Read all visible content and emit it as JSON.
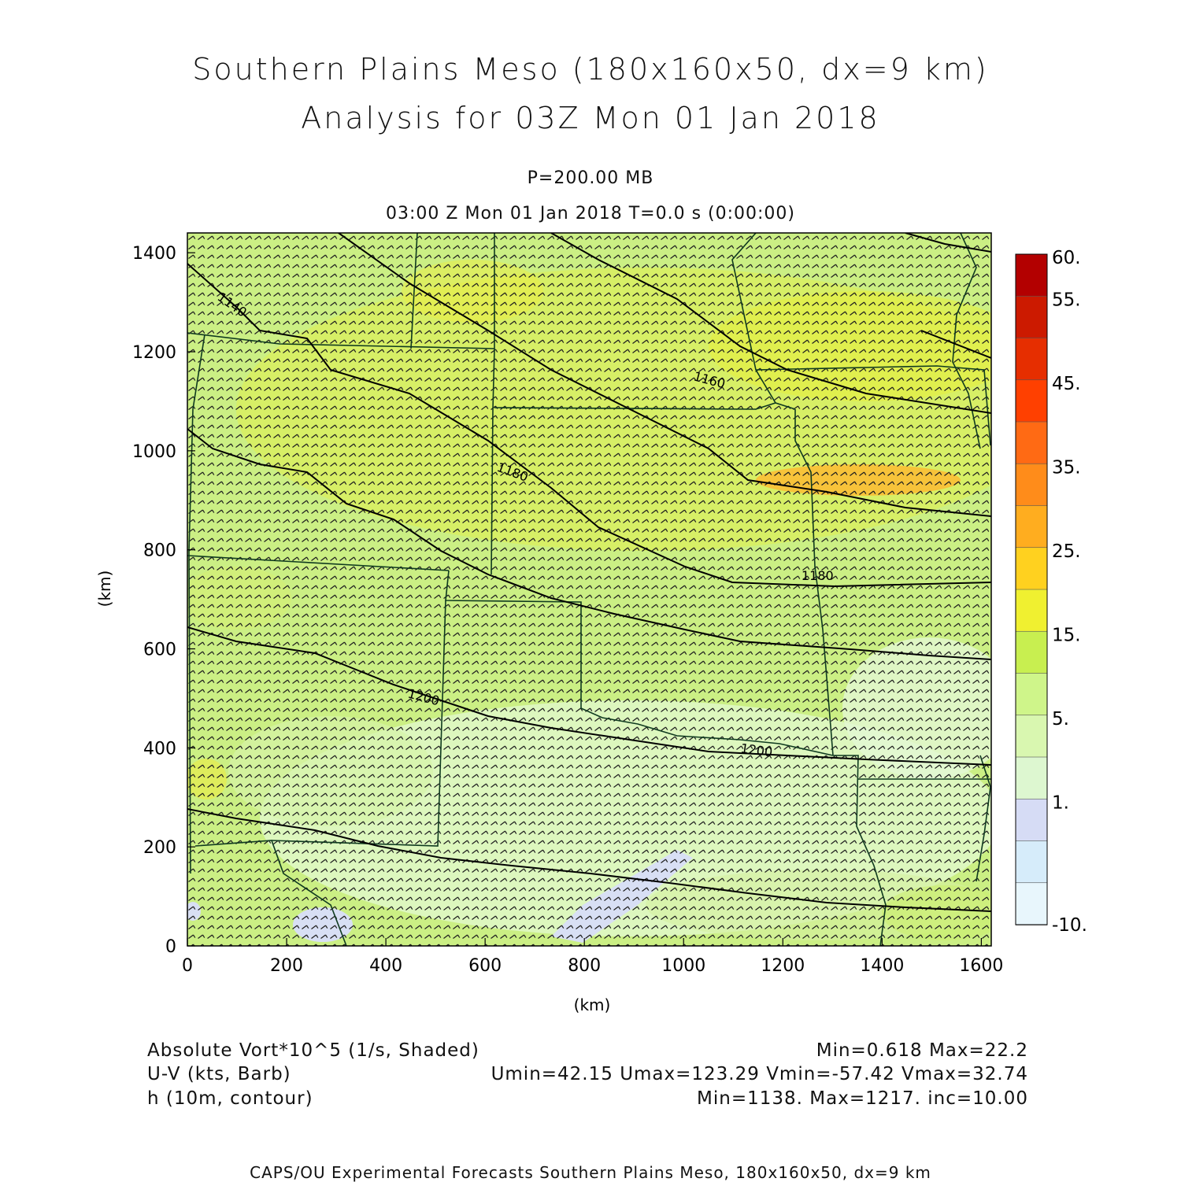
{
  "title": {
    "line1": "Southern Plains Meso (180x160x50, dx=9 km)",
    "line2": "Analysis for 03Z Mon 01 Jan 2018",
    "level": "P=200.00 MB",
    "time": "03:00 Z Mon 01 Jan 2018    T=0.0 s (0:00:00)"
  },
  "chart_data": {
    "type": "heatmap",
    "xlabel": "(km)",
    "ylabel": "(km)",
    "xlim": [
      0,
      1620
    ],
    "ylim": [
      0,
      1440
    ],
    "xticks": [
      "0",
      "200",
      "400",
      "600",
      "800",
      "1000",
      "1200",
      "1400",
      "1600"
    ],
    "yticks": [
      "0",
      "200",
      "400",
      "600",
      "800",
      "1000",
      "1200",
      "1400"
    ],
    "colorbar": {
      "labels": [
        "60.",
        "55.",
        "45.",
        "35.",
        "25.",
        "15.",
        "5.",
        "1.",
        "-10."
      ],
      "colors": [
        "#b30000",
        "#cc1a00",
        "#e62e00",
        "#ff4000",
        "#ff6a14",
        "#ff8c1a",
        "#ffad1f",
        "#ffd11f",
        "#f0f030",
        "#c8ef50",
        "#cff58a",
        "#d9f7b0",
        "#ddf7d0",
        "#d6dcf5",
        "#d6ecfa",
        "#e8f6fc"
      ]
    },
    "contours": {
      "field": "h (10m)",
      "labels": [
        {
          "text": "1140",
          "x": 92,
          "y": 1290
        },
        {
          "text": "1160",
          "x": 1040,
          "y": 1140
        },
        {
          "text": "1180",
          "x": 670,
          "y": 960
        },
        {
          "text": "1200",
          "x": 490,
          "y": 500
        },
        {
          "text": "1200",
          "x": 1210,
          "y": 390
        },
        {
          "text": "1180",
          "x": 1270,
          "y": 760
        }
      ]
    },
    "barbs": {
      "field": "U-V (kts)"
    }
  },
  "legend": {
    "line1_left": "Absolute Vort*10^5 (1/s, Shaded)",
    "line1_right": "Min=0.618 Max=22.2",
    "line2_left": "U-V (kts, Barb)",
    "line2_right": "Umin=42.15 Umax=123.29 Vmin=-57.42 Vmax=32.74",
    "line3_left": "h (10m, contour)",
    "line3_right": "Min=1138. Max=1217. inc=10.00"
  },
  "footer": "CAPS/OU Experimental Forecasts  Southern Plains Meso, 180x160x50, dx=9 km"
}
